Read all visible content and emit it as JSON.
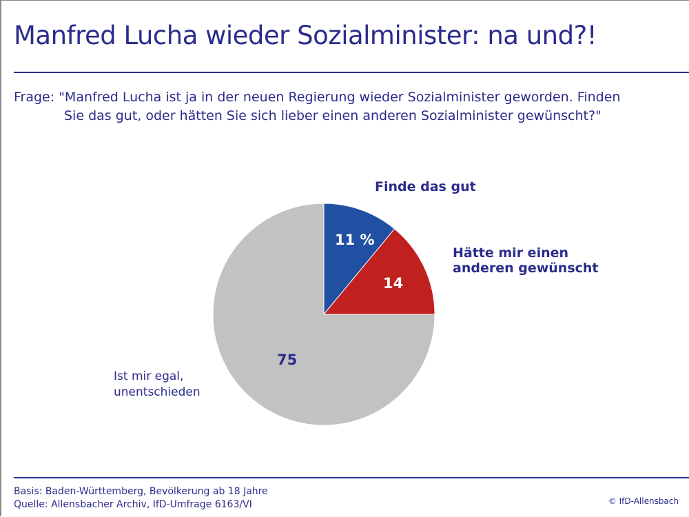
{
  "title": "Manfred Lucha wieder Sozialminister: na und?!",
  "question": {
    "line1": "Frage: \"Manfred Lucha ist ja in der neuen Regierung wieder Sozialminister geworden. Finden",
    "line2": "Sie das gut, oder hätten Sie sich lieber einen anderen Sozialminister gewünscht?\""
  },
  "chart_data": {
    "type": "pie",
    "unit": "%",
    "slices": [
      {
        "name": "Finde das gut",
        "value": 11,
        "data_label": "11 %",
        "color": "#2150a3"
      },
      {
        "name_lines": [
          "Hätte mir einen",
          "anderen gewünscht"
        ],
        "value": 14,
        "data_label": "14",
        "color": "#c0201e"
      },
      {
        "name_lines": [
          "Ist mir egal,",
          "unentschieden"
        ],
        "value": 75,
        "data_label": "75",
        "color": "#c2c2c2"
      }
    ]
  },
  "footer": {
    "basis": "Basis: Baden-Württemberg, Bevölkerung ab 18 Jahre",
    "source": "Quelle: Allensbacher Archiv, IfD-Umfrage 6163/VI",
    "copyright": "© IfD-Allensbach"
  }
}
